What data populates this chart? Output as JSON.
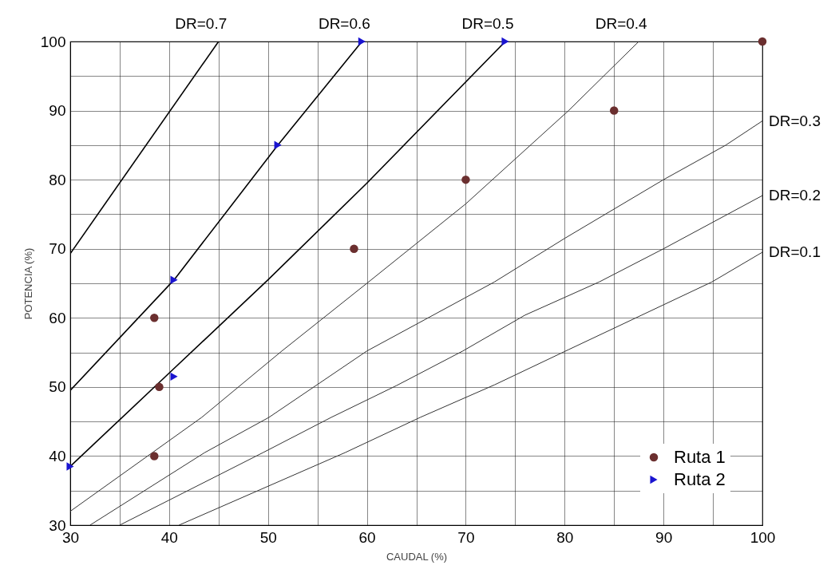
{
  "chart_data": {
    "type": "scatter",
    "xlabel": "CAUDAL (%)",
    "ylabel": "POTENCIA (%)",
    "xlim": [
      30,
      100
    ],
    "ylim": [
      30,
      100
    ],
    "xticks": [
      30,
      {
        "value": 35,
        "label": null
      },
      40,
      {
        "value": 45,
        "label": null
      },
      50,
      {
        "value": 55,
        "label": null
      },
      60,
      {
        "value": 65,
        "label": null
      },
      70,
      {
        "value": 75,
        "label": null
      },
      80,
      {
        "value": 85,
        "label": null
      },
      90,
      {
        "value": 95,
        "label": null
      },
      100
    ],
    "yticks": [
      30,
      {
        "value": 35,
        "label": null
      },
      40,
      {
        "value": 45,
        "label": null
      },
      50,
      {
        "value": 55,
        "label": null
      },
      60,
      {
        "value": 65,
        "label": null
      },
      70,
      {
        "value": 75,
        "label": null
      },
      80,
      {
        "value": 85,
        "label": null
      },
      90,
      {
        "value": 95,
        "label": null
      },
      100
    ],
    "grid": true,
    "legend": "bottom right",
    "series": [
      {
        "name": "DR=0.7",
        "type": "line",
        "color": "#000000",
        "x": [
          30,
          45
        ],
        "values": [
          69.3,
          100
        ]
      },
      {
        "name": "DR=0.6",
        "type": "line",
        "color": "#000000",
        "x": [
          30,
          40.5,
          51,
          59.5
        ],
        "values": [
          49.5,
          65.5,
          85,
          100
        ]
      },
      {
        "name": "DR=0.5",
        "type": "line",
        "color": "#000000",
        "x": [
          30,
          40,
          50,
          60,
          74
        ],
        "values": [
          38.5,
          52,
          65.5,
          79.5,
          100
        ]
      },
      {
        "name": "DR=0.4",
        "type": "line",
        "color": "#333333",
        "x": [
          30,
          43.3,
          51.4,
          60,
          70,
          80.4,
          87.5
        ],
        "values": [
          32,
          45.6,
          55.2,
          65,
          76.5,
          90,
          100
        ]
      },
      {
        "name": "DR=0.3",
        "type": "line",
        "color": "#333333",
        "x": [
          32,
          43.6,
          50.1,
          60,
          72.9,
          80,
          90,
          96.3,
          100
        ],
        "values": [
          30,
          40.5,
          45.6,
          55.2,
          65.2,
          71.5,
          80,
          85,
          88.5
        ]
      },
      {
        "name": "DR=0.2",
        "type": "line",
        "color": "#333333",
        "x": [
          35,
          49.5,
          56.4,
          63,
          69.7,
          76,
          83.5,
          90,
          100
        ],
        "values": [
          30,
          40.5,
          45.6,
          50.2,
          55.2,
          60.4,
          65.2,
          70,
          77.7
        ]
      },
      {
        "name": "DR=0.1",
        "type": "line",
        "color": "#333333",
        "x": [
          41,
          57.8,
          65.4,
          72.9,
          80.4,
          87.8,
          94.9,
          100
        ],
        "values": [
          30,
          40.5,
          45.6,
          50.3,
          55.4,
          60.4,
          65.2,
          69.5
        ]
      },
      {
        "name": "Ruta 1",
        "marker": "circle",
        "color": "#6b2f2f",
        "x": [
          38.5,
          39,
          38.5,
          58.7,
          70,
          85,
          100
        ],
        "values": [
          40,
          50,
          60,
          70,
          80,
          90,
          100
        ]
      },
      {
        "name": "Ruta 2",
        "marker": "triangle",
        "color": "#1a14d0",
        "x": [
          30,
          40.5,
          40.5,
          51,
          59.5,
          74
        ],
        "values": [
          38.5,
          51.5,
          65.5,
          85,
          100,
          100
        ]
      }
    ]
  }
}
